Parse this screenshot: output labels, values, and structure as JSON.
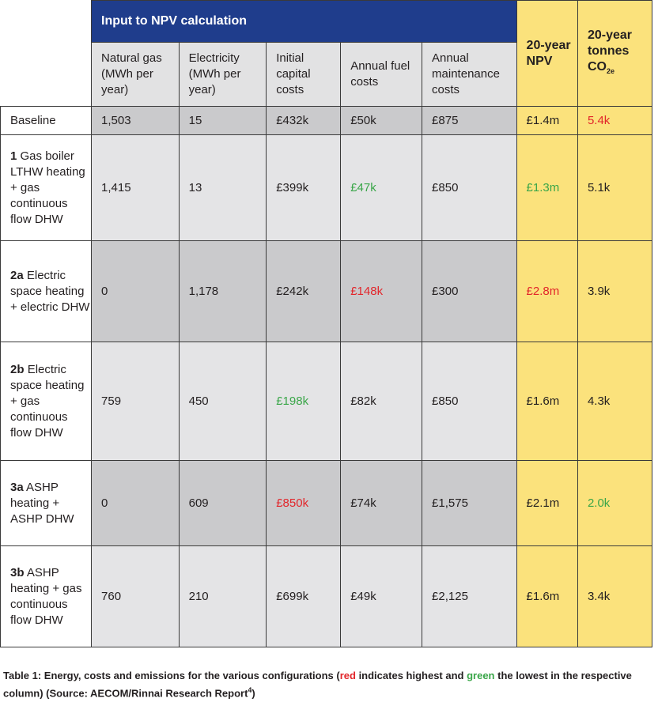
{
  "table": {
    "group_header": "Input to NPV calculation",
    "npv_header": "20-year NPV",
    "co2_header_main": "20-year tonnes CO",
    "co2_header_sub": "2e",
    "columns": [
      "Natural gas (MWh per year)",
      "Electricity (MWh per year)",
      "Initial capital costs",
      "Annual fuel costs",
      "Annual maintenance costs"
    ],
    "rows": [
      {
        "num": "",
        "label": "Baseline",
        "gas": "1,503",
        "elec": "15",
        "capital": "£432k",
        "fuel": "£50k",
        "maint": "£875",
        "npv": "£1.4m",
        "co2": "5.4k"
      },
      {
        "num": "1",
        "label": "Gas boiler LTHW heating + gas continuous flow DHW",
        "gas": "1,415",
        "elec": "13",
        "capital": "£399k",
        "fuel": "£47k",
        "maint": "£850",
        "npv": "£1.3m",
        "co2": "5.1k"
      },
      {
        "num": "2a",
        "label": "Electric space heating + electric DHW",
        "gas": "0",
        "elec": "1,178",
        "capital": "£242k",
        "fuel": "£148k",
        "maint": "£300",
        "npv": "£2.8m",
        "co2": "3.9k"
      },
      {
        "num": "2b",
        "label": "Electric space heating + gas continuous flow DHW",
        "gas": "759",
        "elec": "450",
        "capital": "£198k",
        "fuel": "£82k",
        "maint": "£850",
        "npv": "£1.6m",
        "co2": "4.3k"
      },
      {
        "num": "3a",
        "label": "ASHP heating + ASHP DHW",
        "gas": "0",
        "elec": "609",
        "capital": "£850k",
        "fuel": "£74k",
        "maint": "£1,575",
        "npv": "£2.1m",
        "co2": "2.0k"
      },
      {
        "num": "3b",
        "label": "ASHP heating + gas continuous flow DHW",
        "gas": "760",
        "elec": "210",
        "capital": "£699k",
        "fuel": "£49k",
        "maint": "£2,125",
        "npv": "£1.6m",
        "co2": "3.4k"
      }
    ]
  },
  "caption": {
    "part1": "Table 1: Energy, costs and emissions for the various configurations (",
    "red_word": "red",
    "part2": " indicates highest and ",
    "green_word": "green",
    "part3": " the lowest in the respective column) (Source: AECOM/Rinnai Research Report",
    "footnote": "4",
    "part4": ")"
  },
  "colors": {
    "header_blue": "#1f3d8c",
    "highlight_yellow": "#fbe27c",
    "highest_red": "#e2262b",
    "lowest_green": "#3aa649"
  }
}
